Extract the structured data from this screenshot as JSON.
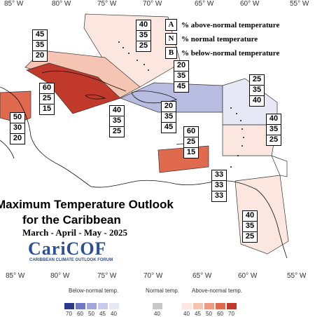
{
  "longitude_labels_top": [
    "85° W",
    "80° W",
    "75° W",
    "70° W",
    "65° W",
    "60° W",
    "55° W"
  ],
  "longitude_labels_bottom": [
    "85° W",
    "80° W",
    "75° W",
    "70° W",
    "65° W",
    "60° W",
    "55° W"
  ],
  "legend": {
    "above": {
      "key": "A",
      "text": "% above-normal temperature"
    },
    "normal": {
      "key": "N",
      "text": "% normal temperature"
    },
    "below": {
      "key": "B",
      "text": "% below-normal temperature"
    }
  },
  "title": {
    "line1": "Maximum Temperature Outlook",
    "line2": "for the Caribbean",
    "period": "March - April - May - 2025"
  },
  "logo": {
    "name": "CariCOF",
    "subtitle": "CARIBBEAN CLIMATE OUTLOOK FORUM"
  },
  "colorbar": {
    "below_label": "Below-normal temp.",
    "normal_label": "Normal temp.",
    "above_label": "Above-normal temp.",
    "below_ticks": [
      "70",
      "60",
      "50",
      "45",
      "40"
    ],
    "normal_ticks": [
      "40"
    ],
    "above_ticks": [
      "40",
      "45",
      "50",
      "60",
      "70"
    ],
    "below_colors": [
      "#2b3a8f",
      "#6f78c2",
      "#a3a8da",
      "#c7caea",
      "#e7e8f6"
    ],
    "normal_color": "#c8c8c8",
    "above_colors": [
      "#fbe7df",
      "#f6c4b2",
      "#ee9a80",
      "#df6a4e",
      "#c0392b"
    ]
  },
  "forecasts": [
    {
      "id": "bahamas",
      "values": [
        "40",
        "35",
        "25"
      ]
    },
    {
      "id": "cuba",
      "values": [
        "45",
        "35",
        "20"
      ]
    },
    {
      "id": "belize",
      "values": [
        "60",
        "25",
        "15"
      ]
    },
    {
      "id": "central-america",
      "values": [
        "50",
        "30",
        "20"
      ]
    },
    {
      "id": "jamaica",
      "values": [
        "40",
        "35",
        "25"
      ]
    },
    {
      "id": "hispaniola",
      "values": [
        "20",
        "35",
        "45"
      ]
    },
    {
      "id": "hispaniola-south",
      "values": [
        "20",
        "35",
        "45"
      ]
    },
    {
      "id": "puerto-rico",
      "values": [
        "60",
        "25",
        "15"
      ]
    },
    {
      "id": "leeward",
      "values": [
        "25",
        "35",
        "40"
      ]
    },
    {
      "id": "windward",
      "values": [
        "40",
        "35",
        "25"
      ]
    },
    {
      "id": "trinidad",
      "values": [
        "33",
        "33",
        "33"
      ]
    },
    {
      "id": "guianas",
      "values": [
        "40",
        "35",
        "25"
      ]
    }
  ],
  "zone_colors": {
    "above_light": "#fbe7df",
    "above_med": "#f6c4b2",
    "above_strong": "#c0392b",
    "above_medstrong": "#df6a4e",
    "below_light": "#e7e8f6",
    "below_med": "#b8bce0"
  }
}
